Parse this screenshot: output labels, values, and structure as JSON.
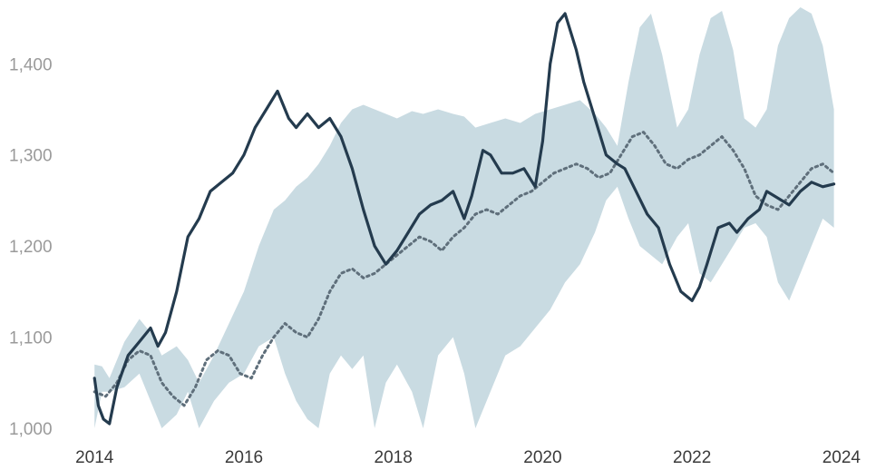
{
  "chart_data": {
    "type": "line",
    "title": "",
    "xlabel": "",
    "ylabel": "",
    "xlim": [
      2013.9,
      2024.05
    ],
    "ylim": [
      1000,
      1460
    ],
    "y_ticks": [
      {
        "value": 1000,
        "label": "1,000"
      },
      {
        "value": 1100,
        "label": "1,100"
      },
      {
        "value": 1200,
        "label": "1,200"
      },
      {
        "value": 1300,
        "label": "1,300"
      },
      {
        "value": 1400,
        "label": "1,400"
      }
    ],
    "x_ticks": [
      {
        "value": 2014,
        "label": "2014"
      },
      {
        "value": 2016,
        "label": "2016"
      },
      {
        "value": 2018,
        "label": "2018"
      },
      {
        "value": 2020,
        "label": "2020"
      },
      {
        "value": 2022,
        "label": "2022"
      },
      {
        "value": 2024,
        "label": "2024"
      }
    ],
    "grid": false,
    "legend": "none",
    "colors": {
      "actual": "#243b4e",
      "dotted": "#5f6f7b",
      "band": "#c9dbe2"
    },
    "band": {
      "x": [
        2014.0,
        2014.1,
        2014.2,
        2014.4,
        2014.6,
        2014.75,
        2014.9,
        2015.1,
        2015.25,
        2015.4,
        2015.6,
        2015.8,
        2016.0,
        2016.2,
        2016.4,
        2016.55,
        2016.7,
        2016.85,
        2017.0,
        2017.15,
        2017.3,
        2017.45,
        2017.6,
        2017.75,
        2017.9,
        2018.05,
        2018.25,
        2018.4,
        2018.6,
        2018.8,
        2018.95,
        2019.1,
        2019.3,
        2019.5,
        2019.7,
        2019.9,
        2020.1,
        2020.3,
        2020.5,
        2020.7,
        2020.85,
        2021.0,
        2021.15,
        2021.3,
        2021.45,
        2021.6,
        2021.8,
        2021.95,
        2022.1,
        2022.25,
        2022.4,
        2022.55,
        2022.7,
        2022.85,
        2023.0,
        2023.15,
        2023.3,
        2023.45,
        2023.6,
        2023.75,
        2023.9
      ],
      "upper": [
        1070,
        1068,
        1055,
        1095,
        1120,
        1105,
        1080,
        1090,
        1075,
        1050,
        1080,
        1115,
        1150,
        1200,
        1240,
        1250,
        1265,
        1275,
        1290,
        1310,
        1335,
        1350,
        1355,
        1350,
        1345,
        1340,
        1348,
        1345,
        1350,
        1345,
        1342,
        1330,
        1335,
        1340,
        1335,
        1345,
        1350,
        1355,
        1360,
        1345,
        1330,
        1310,
        1380,
        1440,
        1455,
        1410,
        1330,
        1350,
        1410,
        1450,
        1458,
        1415,
        1340,
        1330,
        1350,
        1420,
        1450,
        1462,
        1455,
        1420,
        1350
      ],
      "lower": [
        1000,
        1040,
        1040,
        1045,
        1060,
        1030,
        1000,
        1015,
        1040,
        1000,
        1030,
        1050,
        1060,
        1090,
        1100,
        1060,
        1030,
        1010,
        1000,
        1060,
        1080,
        1065,
        1080,
        1000,
        1050,
        1070,
        1040,
        1000,
        1080,
        1100,
        1060,
        1000,
        1040,
        1080,
        1090,
        1110,
        1130,
        1160,
        1180,
        1215,
        1250,
        1265,
        1230,
        1200,
        1190,
        1180,
        1210,
        1225,
        1170,
        1160,
        1180,
        1200,
        1220,
        1225,
        1210,
        1160,
        1140,
        1170,
        1200,
        1230,
        1220
      ]
    },
    "series": [
      {
        "style": "solid",
        "x": [
          2014.0,
          2014.05,
          2014.12,
          2014.2,
          2014.3,
          2014.45,
          2014.6,
          2014.75,
          2014.85,
          2014.95,
          2015.1,
          2015.25,
          2015.4,
          2015.55,
          2015.7,
          2015.85,
          2016.0,
          2016.15,
          2016.3,
          2016.45,
          2016.6,
          2016.7,
          2016.75,
          2016.85,
          2017.0,
          2017.15,
          2017.3,
          2017.45,
          2017.6,
          2017.75,
          2017.9,
          2018.05,
          2018.2,
          2018.35,
          2018.5,
          2018.65,
          2018.8,
          2018.95,
          2019.05,
          2019.2,
          2019.3,
          2019.45,
          2019.6,
          2019.75,
          2019.9,
          2020.0,
          2020.1,
          2020.2,
          2020.3,
          2020.45,
          2020.55,
          2020.7,
          2020.85,
          2021.0,
          2021.1,
          2021.25,
          2021.4,
          2021.55,
          2021.7,
          2021.85,
          2022.0,
          2022.1,
          2022.2,
          2022.35,
          2022.5,
          2022.6,
          2022.75,
          2022.9,
          2023.0,
          2023.1,
          2023.2,
          2023.3,
          2023.45,
          2023.6,
          2023.75,
          2023.9
        ],
        "y": [
          1055,
          1025,
          1010,
          1005,
          1045,
          1080,
          1095,
          1110,
          1090,
          1105,
          1150,
          1210,
          1230,
          1260,
          1270,
          1280,
          1300,
          1330,
          1350,
          1370,
          1340,
          1330,
          1335,
          1345,
          1330,
          1340,
          1320,
          1285,
          1240,
          1200,
          1180,
          1195,
          1215,
          1235,
          1245,
          1250,
          1260,
          1230,
          1255,
          1305,
          1300,
          1280,
          1280,
          1285,
          1265,
          1315,
          1400,
          1445,
          1455,
          1415,
          1380,
          1340,
          1300,
          1290,
          1285,
          1260,
          1235,
          1220,
          1180,
          1150,
          1140,
          1155,
          1180,
          1220,
          1225,
          1215,
          1230,
          1240,
          1260,
          1255,
          1250,
          1245,
          1260,
          1270,
          1265,
          1268
        ]
      },
      {
        "style": "dotted",
        "x": [
          2014.0,
          2014.15,
          2014.3,
          2014.45,
          2014.6,
          2014.75,
          2014.9,
          2015.05,
          2015.2,
          2015.35,
          2015.5,
          2015.65,
          2015.8,
          2015.95,
          2016.1,
          2016.25,
          2016.4,
          2016.55,
          2016.7,
          2016.85,
          2017.0,
          2017.15,
          2017.3,
          2017.45,
          2017.6,
          2017.75,
          2017.9,
          2018.05,
          2018.2,
          2018.35,
          2018.5,
          2018.65,
          2018.8,
          2018.95,
          2019.1,
          2019.25,
          2019.4,
          2019.55,
          2019.7,
          2019.85,
          2020.0,
          2020.15,
          2020.3,
          2020.45,
          2020.6,
          2020.75,
          2020.9,
          2021.05,
          2021.2,
          2021.35,
          2021.5,
          2021.65,
          2021.8,
          2021.95,
          2022.1,
          2022.25,
          2022.4,
          2022.55,
          2022.7,
          2022.85,
          2023.0,
          2023.15,
          2023.3,
          2023.45,
          2023.6,
          2023.75,
          2023.9
        ],
        "y": [
          1040,
          1035,
          1050,
          1075,
          1085,
          1080,
          1050,
          1035,
          1025,
          1045,
          1075,
          1085,
          1080,
          1060,
          1055,
          1080,
          1100,
          1115,
          1105,
          1100,
          1120,
          1150,
          1170,
          1175,
          1165,
          1170,
          1180,
          1190,
          1200,
          1210,
          1205,
          1195,
          1210,
          1220,
          1235,
          1240,
          1235,
          1245,
          1255,
          1260,
          1270,
          1280,
          1285,
          1290,
          1285,
          1275,
          1280,
          1300,
          1320,
          1325,
          1310,
          1290,
          1285,
          1295,
          1300,
          1310,
          1320,
          1305,
          1285,
          1255,
          1245,
          1240,
          1255,
          1270,
          1285,
          1290,
          1280
        ]
      }
    ]
  }
}
